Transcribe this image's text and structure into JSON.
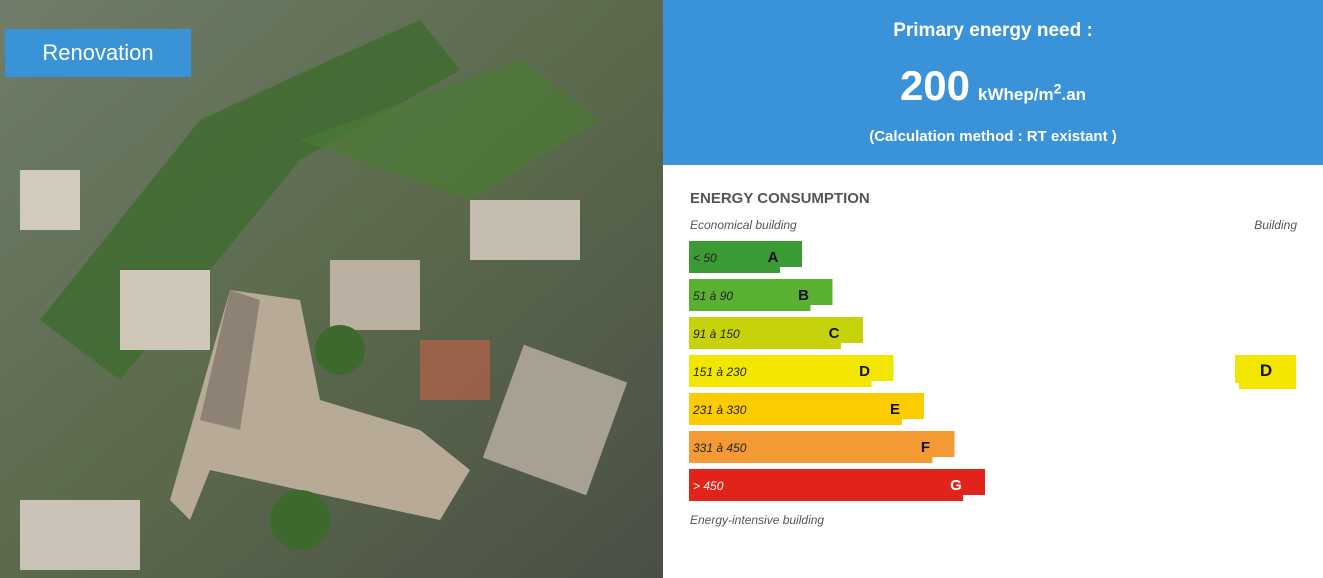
{
  "photo_badge": "Renovation",
  "header": {
    "title": "Primary energy need :",
    "value": "200",
    "unit_base": "kWhep/m",
    "unit_exponent": "2",
    "unit_suffix": ".an",
    "method": "(Calculation method : RT existant )"
  },
  "scale": {
    "title": "ENERGY CONSUMPTION",
    "top_left": "Economical building",
    "top_right": "Building",
    "bottom_left": "Energy-intensive building",
    "classes": [
      {
        "range": "< 50",
        "letter": "A",
        "color": "#3a9b35"
      },
      {
        "range": "51 à 90",
        "letter": "B",
        "color": "#5ab031"
      },
      {
        "range": "91 à 150",
        "letter": "C",
        "color": "#c6d30a"
      },
      {
        "range": "151 à 230",
        "letter": "D",
        "color": "#f2e500"
      },
      {
        "range": "231 à 330",
        "letter": "E",
        "color": "#fccc00"
      },
      {
        "range": "331 à 450",
        "letter": "F",
        "color": "#f49a34"
      },
      {
        "range": "> 450",
        "letter": "G",
        "color": "#e2231a"
      }
    ],
    "current": "D"
  }
}
